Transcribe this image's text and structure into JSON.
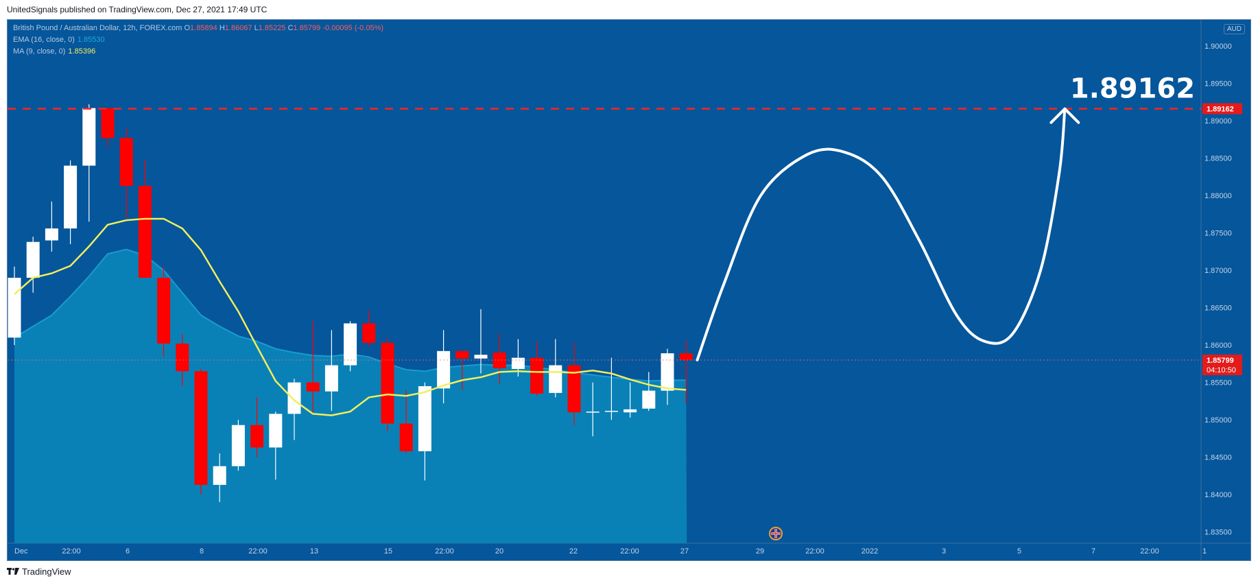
{
  "header": {
    "published": "UnitedSignals published on TradingView.com, Dec 27, 2021 17:49 UTC"
  },
  "legend": {
    "symbol": "British Pound / Australian Dollar, 12h, FOREX.com",
    "o_label": "O",
    "o": "1.85894",
    "h_label": "H",
    "h": "1.86067",
    "l_label": "L",
    "l": "1.85225",
    "c_label": "C",
    "c": "1.85799",
    "change": "-0.00095 (-0.05%)",
    "ema_label": "EMA (16, close, 0)",
    "ema_value": "1.85530",
    "ma_label": "MA (9, close, 0)",
    "ma_value": "1.85396"
  },
  "currency_badge": "AUD",
  "footer": {
    "brand": "TradingView"
  },
  "colors": {
    "background": "#05569b",
    "bull": "#ffffff",
    "bear": "#ff0000",
    "ema_fill": "#0a84b8",
    "ema_line": "#1b9bd1",
    "ma_line": "#f3ee5c",
    "target_line": "#ff2020",
    "axis_text": "#c4d4e8"
  },
  "chart_data": {
    "type": "candlestick",
    "timeframe": "12h",
    "ylim": [
      1.8335,
      1.9035
    ],
    "y_ticks": [
      "1.90000",
      "1.89500",
      "1.89000",
      "1.88500",
      "1.88000",
      "1.87500",
      "1.87000",
      "1.86500",
      "1.86000",
      "1.85500",
      "1.85000",
      "1.84500",
      "1.84000",
      "1.83500"
    ],
    "x_labels": [
      "Dec",
      "22:00",
      "6",
      "8",
      "22:00",
      "13",
      "15",
      "22:00",
      "20",
      "22",
      "22:00",
      "27",
      "29",
      "22:00",
      "2022",
      "3",
      "5",
      "7",
      "22:00",
      "1"
    ],
    "candles": [
      {
        "o": 1.861,
        "h": 1.8705,
        "l": 1.86,
        "c": 1.869
      },
      {
        "o": 1.869,
        "h": 1.8745,
        "l": 1.867,
        "c": 1.8738
      },
      {
        "o": 1.874,
        "h": 1.8792,
        "l": 1.8725,
        "c": 1.8756
      },
      {
        "o": 1.8756,
        "h": 1.8847,
        "l": 1.8735,
        "c": 1.884
      },
      {
        "o": 1.884,
        "h": 1.8922,
        "l": 1.8765,
        "c": 1.8917
      },
      {
        "o": 1.8917,
        "h": 1.8916,
        "l": 1.8865,
        "c": 1.8877
      },
      {
        "o": 1.8877,
        "h": 1.889,
        "l": 1.877,
        "c": 1.8813
      },
      {
        "o": 1.8813,
        "h": 1.8848,
        "l": 1.869,
        "c": 1.869
      },
      {
        "o": 1.869,
        "h": 1.8705,
        "l": 1.8585,
        "c": 1.8602
      },
      {
        "o": 1.8602,
        "h": 1.8615,
        "l": 1.8545,
        "c": 1.8565
      },
      {
        "o": 1.8565,
        "h": 1.8568,
        "l": 1.84,
        "c": 1.8413
      },
      {
        "o": 1.8413,
        "h": 1.8455,
        "l": 1.839,
        "c": 1.8438
      },
      {
        "o": 1.8438,
        "h": 1.85,
        "l": 1.8432,
        "c": 1.8493
      },
      {
        "o": 1.8493,
        "h": 1.853,
        "l": 1.845,
        "c": 1.8463
      },
      {
        "o": 1.8463,
        "h": 1.8511,
        "l": 1.842,
        "c": 1.8508
      },
      {
        "o": 1.8508,
        "h": 1.8555,
        "l": 1.8473,
        "c": 1.855
      },
      {
        "o": 1.855,
        "h": 1.8632,
        "l": 1.8508,
        "c": 1.8538
      },
      {
        "o": 1.8538,
        "h": 1.862,
        "l": 1.8512,
        "c": 1.8573
      },
      {
        "o": 1.8573,
        "h": 1.8632,
        "l": 1.8565,
        "c": 1.8629
      },
      {
        "o": 1.8629,
        "h": 1.8646,
        "l": 1.8598,
        "c": 1.8603
      },
      {
        "o": 1.8603,
        "h": 1.861,
        "l": 1.8485,
        "c": 1.8495
      },
      {
        "o": 1.8495,
        "h": 1.854,
        "l": 1.8455,
        "c": 1.8458
      },
      {
        "o": 1.8458,
        "h": 1.855,
        "l": 1.8419,
        "c": 1.8545
      },
      {
        "o": 1.8542,
        "h": 1.862,
        "l": 1.8522,
        "c": 1.8592
      },
      {
        "o": 1.8592,
        "h": 1.859,
        "l": 1.854,
        "c": 1.8582
      },
      {
        "o": 1.8582,
        "h": 1.8648,
        "l": 1.8562,
        "c": 1.8587
      },
      {
        "o": 1.859,
        "h": 1.8615,
        "l": 1.8548,
        "c": 1.8569
      },
      {
        "o": 1.8568,
        "h": 1.8608,
        "l": 1.8558,
        "c": 1.8583
      },
      {
        "o": 1.8583,
        "h": 1.8605,
        "l": 1.8532,
        "c": 1.8535
      },
      {
        "o": 1.8536,
        "h": 1.8608,
        "l": 1.853,
        "c": 1.8573
      },
      {
        "o": 1.8573,
        "h": 1.8603,
        "l": 1.8493,
        "c": 1.851
      },
      {
        "o": 1.851,
        "h": 1.855,
        "l": 1.8478,
        "c": 1.8511
      },
      {
        "o": 1.8511,
        "h": 1.8583,
        "l": 1.85,
        "c": 1.8512
      },
      {
        "o": 1.851,
        "h": 1.855,
        "l": 1.8503,
        "c": 1.8514
      },
      {
        "o": 1.8515,
        "h": 1.8564,
        "l": 1.8512,
        "c": 1.8539
      },
      {
        "o": 1.8539,
        "h": 1.8595,
        "l": 1.852,
        "c": 1.8589
      },
      {
        "o": 1.8589,
        "h": 1.8607,
        "l": 1.8522,
        "c": 1.858
      }
    ],
    "ema16": [
      1.861,
      1.8625,
      1.864,
      1.8665,
      1.8692,
      1.8722,
      1.8728,
      1.872,
      1.87,
      1.867,
      1.864,
      1.8625,
      1.8612,
      1.8605,
      1.8595,
      1.859,
      1.8586,
      1.8585,
      1.8588,
      1.8584,
      1.8575,
      1.8567,
      1.8565,
      1.857,
      1.8572,
      1.8574,
      1.8573,
      1.8573,
      1.857,
      1.8567,
      1.8563,
      1.856,
      1.8557,
      1.8554,
      1.8552,
      1.8553,
      1.8553
    ],
    "ma9": [
      1.8668,
      1.869,
      1.8696,
      1.8706,
      1.8732,
      1.8761,
      1.8767,
      1.8769,
      1.8769,
      1.8756,
      1.8727,
      1.8685,
      1.8645,
      1.8598,
      1.8552,
      1.8526,
      1.8508,
      1.8506,
      1.8511,
      1.853,
      1.8534,
      1.8532,
      1.8537,
      1.8546,
      1.8553,
      1.8557,
      1.8564,
      1.8565,
      1.8564,
      1.8564,
      1.8563,
      1.8566,
      1.8562,
      1.8554,
      1.8547,
      1.8542,
      1.854
    ],
    "target_price": "1.89162",
    "target_value": 1.89162,
    "current_price": "1.85799",
    "current_value": 1.85799,
    "countdown": "04:10:50",
    "target_annotation": "1.89162",
    "projection": [
      [
        36.6,
        1.858
      ],
      [
        38,
        1.868
      ],
      [
        40,
        1.88
      ],
      [
        42.5,
        1.8855
      ],
      [
        44.5,
        1.8858
      ],
      [
        46.5,
        1.8825
      ],
      [
        48.5,
        1.874
      ],
      [
        50.5,
        1.864
      ],
      [
        52,
        1.8605
      ],
      [
        53.5,
        1.8615
      ],
      [
        55,
        1.87
      ],
      [
        56,
        1.883
      ],
      [
        56.3,
        1.8916
      ]
    ]
  }
}
